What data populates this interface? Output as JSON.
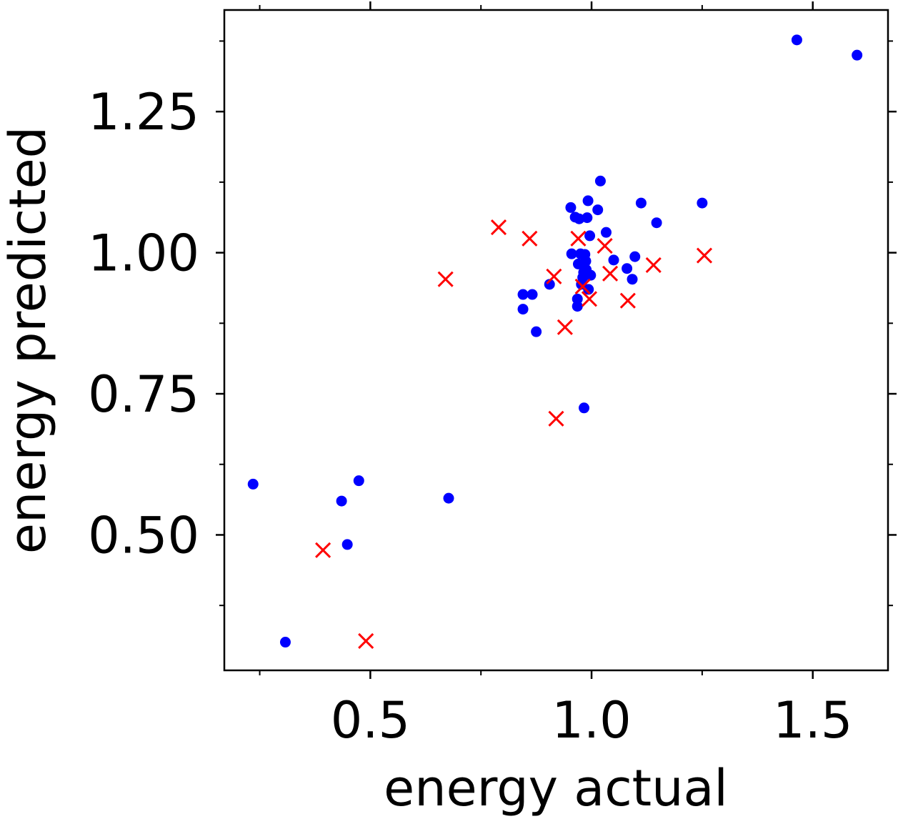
{
  "chart_data": {
    "type": "scatter",
    "title": "",
    "xlabel": "energy actual",
    "ylabel": "energy predicted",
    "xlim": [
      0.17,
      1.67
    ],
    "ylim": [
      0.26,
      1.43
    ],
    "xticks": [
      {
        "value": 0.5,
        "label": "0.5"
      },
      {
        "value": 1.0,
        "label": "1.0"
      },
      {
        "value": 1.5,
        "label": "1.5"
      }
    ],
    "yticks": [
      {
        "value": 0.5,
        "label": "0.50"
      },
      {
        "value": 0.75,
        "label": "0.75"
      },
      {
        "value": 1.0,
        "label": "1.00"
      },
      {
        "value": 1.25,
        "label": "1.25"
      }
    ],
    "xminor": [
      0.25,
      0.75,
      1.25
    ],
    "yminor": [
      0.375,
      0.625,
      0.875,
      1.125,
      1.375
    ],
    "grid": false,
    "legend": null,
    "series": [
      {
        "marker": "dot",
        "color": "#0000ff",
        "points": [
          [
            0.235,
            0.59
          ],
          [
            0.308,
            0.31
          ],
          [
            0.435,
            0.56
          ],
          [
            0.448,
            0.483
          ],
          [
            0.474,
            0.596
          ],
          [
            0.677,
            0.565
          ],
          [
            0.845,
            0.926
          ],
          [
            0.845,
            0.9
          ],
          [
            0.866,
            0.926
          ],
          [
            0.875,
            0.86
          ],
          [
            0.905,
            0.944
          ],
          [
            0.953,
            1.08
          ],
          [
            0.955,
            0.998
          ],
          [
            0.963,
            1.063
          ],
          [
            0.968,
            0.918
          ],
          [
            0.968,
            0.905
          ],
          [
            0.97,
            0.98
          ],
          [
            0.972,
            1.06
          ],
          [
            0.975,
            0.998
          ],
          [
            0.977,
            0.944
          ],
          [
            0.98,
            0.956
          ],
          [
            0.982,
            0.965
          ],
          [
            0.983,
            0.725
          ],
          [
            0.985,
            0.997
          ],
          [
            0.987,
            0.985
          ],
          [
            0.988,
            0.97
          ],
          [
            0.99,
            1.062
          ],
          [
            0.992,
            1.092
          ],
          [
            0.993,
            0.935
          ],
          [
            0.996,
            1.03
          ],
          [
            0.998,
            0.96
          ],
          [
            1.014,
            1.076
          ],
          [
            1.02,
            1.127
          ],
          [
            1.033,
            1.036
          ],
          [
            1.05,
            0.987
          ],
          [
            1.08,
            0.972
          ],
          [
            1.092,
            0.953
          ],
          [
            1.098,
            0.993
          ],
          [
            1.112,
            1.088
          ],
          [
            1.147,
            1.053
          ],
          [
            1.25,
            1.088
          ],
          [
            1.464,
            1.377
          ],
          [
            1.6,
            1.35
          ]
        ]
      },
      {
        "marker": "x",
        "color": "#ff0000",
        "points": [
          [
            0.393,
            0.473
          ],
          [
            0.49,
            0.312
          ],
          [
            0.67,
            0.953
          ],
          [
            0.79,
            1.045
          ],
          [
            0.86,
            1.025
          ],
          [
            0.915,
            0.958
          ],
          [
            0.92,
            0.706
          ],
          [
            0.94,
            0.868
          ],
          [
            0.97,
            1.025
          ],
          [
            0.98,
            0.94
          ],
          [
            0.995,
            0.918
          ],
          [
            1.03,
            1.012
          ],
          [
            1.042,
            0.963
          ],
          [
            1.082,
            0.915
          ],
          [
            1.14,
            0.978
          ],
          [
            1.255,
            0.995
          ]
        ]
      }
    ]
  }
}
